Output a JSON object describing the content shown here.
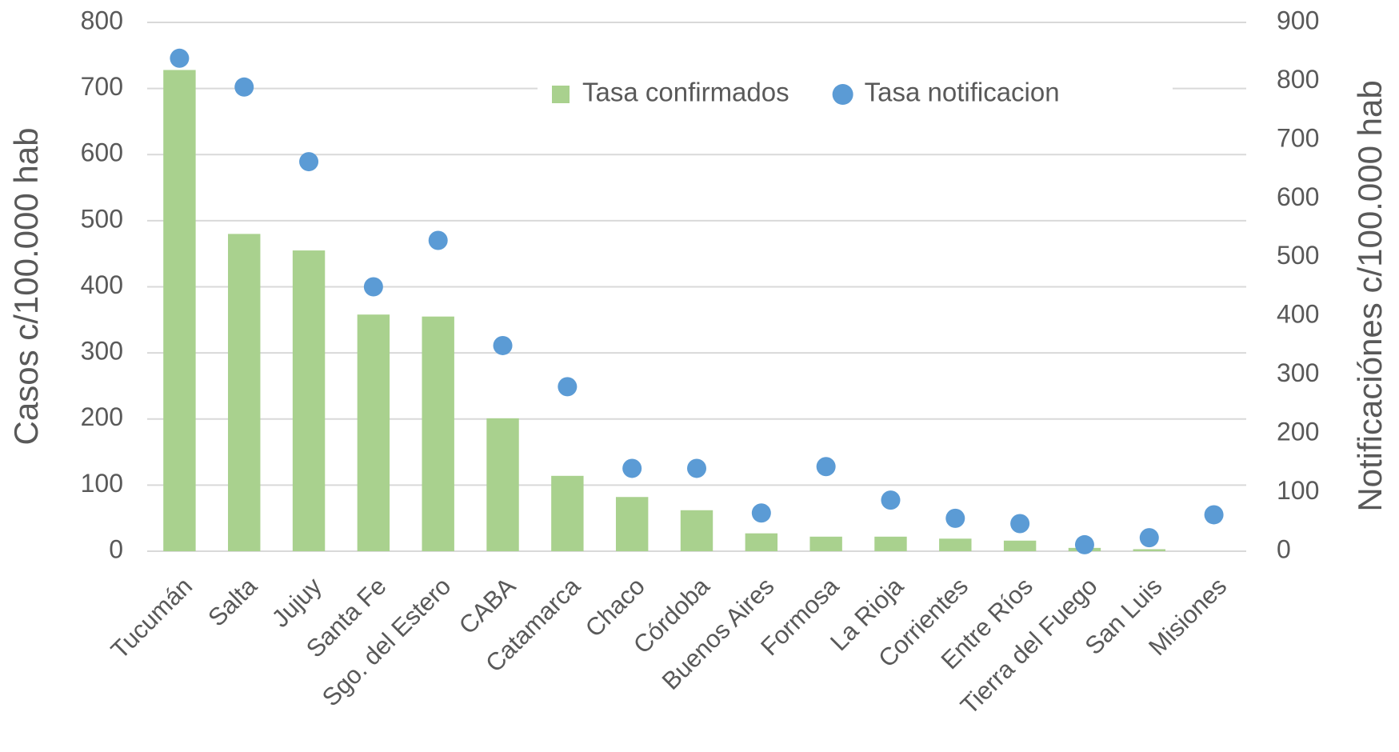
{
  "chart_data": {
    "type": "bar",
    "categories": [
      "Tucumán",
      "Salta",
      "Jujuy",
      "Santa Fe",
      "Sgo. del Estero",
      "CABA",
      "Catamarca",
      "Chaco",
      "Córdoba",
      "Buenos Aires",
      "Formosa",
      "La Rioja",
      "Corrientes",
      "Entre Ríos",
      "Tierra del Fuego",
      "San Luis",
      "Misiones"
    ],
    "series": [
      {
        "name": "Tasa confirmados",
        "type": "bar",
        "color": "#a9d18e",
        "values": [
          728,
          480,
          455,
          358,
          355,
          201,
          114,
          82,
          62,
          27,
          22,
          22,
          19,
          16,
          5,
          3,
          0
        ]
      },
      {
        "name": "Tasa notificacion",
        "type": "scatter",
        "axis": "y2",
        "color": "#5b9bd5",
        "values": [
          839,
          790,
          663,
          450,
          529,
          350,
          280,
          141,
          141,
          65,
          144,
          87,
          56,
          47,
          11,
          23,
          62
        ]
      }
    ],
    "ylabel": "Casos c/100.000 hab",
    "y2label": "Notificaciónes c/100.000 hab",
    "ylim": [
      0,
      800
    ],
    "yticks": [
      0,
      100,
      200,
      300,
      400,
      500,
      600,
      700,
      800
    ],
    "y2lim": [
      0,
      900
    ],
    "y2ticks": [
      0,
      100,
      200,
      300,
      400,
      500,
      600,
      700,
      800,
      900
    ],
    "grid": true,
    "legend": "top"
  }
}
